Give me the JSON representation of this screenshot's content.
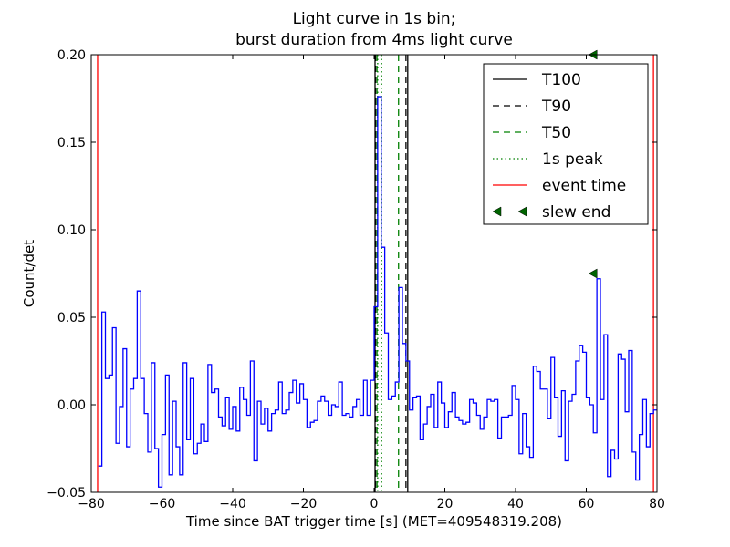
{
  "chart_data": {
    "type": "line",
    "style": "step",
    "title_lines": [
      "Light curve in 1s bin;",
      "burst duration from 4ms light curve"
    ],
    "xlabel": "Time since BAT trigger time [s] (MET=409548319.208)",
    "ylabel": "Count/det",
    "xlim": [
      -80,
      80
    ],
    "ylim": [
      -0.05,
      0.2
    ],
    "xticks": [
      -80,
      -60,
      -40,
      -20,
      0,
      20,
      40,
      60,
      80
    ],
    "xtick_labels": [
      "−80",
      "−60",
      "−40",
      "−20",
      "0",
      "20",
      "40",
      "60",
      "80"
    ],
    "yticks": [
      -0.05,
      0.0,
      0.05,
      0.1,
      0.15,
      0.2
    ],
    "ytick_labels": [
      "−0.05",
      "0.00",
      "0.05",
      "0.10",
      "0.15",
      "0.20"
    ],
    "grid": false,
    "legend_position": "top-right",
    "series": [
      {
        "name": "light curve",
        "color": "#0000ff",
        "bin_start": -78,
        "bin_width": 1,
        "values": [
          -0.035,
          0.053,
          0.015,
          0.017,
          0.044,
          -0.022,
          -0.001,
          0.032,
          -0.024,
          0.009,
          0.015,
          0.065,
          0.015,
          -0.005,
          -0.027,
          0.024,
          -0.025,
          -0.047,
          -0.017,
          0.017,
          -0.04,
          0.002,
          -0.024,
          -0.04,
          0.024,
          -0.02,
          0.015,
          -0.028,
          -0.022,
          -0.011,
          -0.021,
          0.023,
          0.007,
          0.009,
          -0.007,
          -0.012,
          0.004,
          -0.014,
          -0.001,
          -0.015,
          0.01,
          0.003,
          -0.006,
          0.025,
          -0.032,
          0.002,
          -0.011,
          -0.002,
          -0.015,
          -0.005,
          -0.003,
          0.013,
          -0.005,
          -0.003,
          0.007,
          0.014,
          0.001,
          0.012,
          0.003,
          -0.013,
          -0.01,
          -0.009,
          0.002,
          0.005,
          0.002,
          -0.006,
          0.0,
          -0.001,
          0.013,
          -0.006,
          -0.005,
          -0.007,
          -0.001,
          0.003,
          -0.006,
          0.014,
          -0.006,
          0.014,
          0.056,
          0.176,
          0.09,
          0.041,
          0.003,
          0.005,
          0.013,
          0.067,
          0.035,
          0.025,
          -0.003,
          0.004,
          0.005,
          -0.02,
          -0.011,
          -0.001,
          0.006,
          -0.013,
          0.013,
          0.001,
          -0.013,
          -0.004,
          0.007,
          -0.007,
          -0.009,
          -0.011,
          -0.01,
          0.003,
          0.001,
          -0.006,
          -0.014,
          -0.007,
          0.003,
          0.002,
          0.003,
          -0.019,
          -0.007,
          -0.007,
          -0.006,
          0.011,
          0.003,
          -0.028,
          -0.005,
          -0.024,
          -0.03,
          0.022,
          0.019,
          0.009,
          0.009,
          -0.008,
          0.027,
          0.004,
          -0.018,
          0.008,
          -0.032,
          0.002,
          0.006,
          0.025,
          0.034,
          0.03,
          0.004,
          0.0,
          -0.016,
          0.072,
          0.003,
          0.04,
          -0.041,
          -0.026,
          -0.031,
          0.029,
          0.026,
          -0.004,
          0.031,
          -0.027,
          -0.043,
          -0.017,
          0.003,
          -0.024,
          -0.005,
          -0.003
        ]
      }
    ],
    "vlines": [
      {
        "name": "T100",
        "color": "#000000",
        "style": "solid",
        "x": [
          0.26,
          9.5
        ]
      },
      {
        "name": "T90",
        "color": "#000000",
        "style": "dashed",
        "x": [
          0.4,
          9.0
        ]
      },
      {
        "name": "T50",
        "color": "#008000",
        "style": "dashed",
        "x": [
          0.8,
          6.9
        ]
      },
      {
        "name": "1s peak",
        "color": "#008000",
        "style": "dotted",
        "x": [
          1.0,
          2.1
        ]
      },
      {
        "name": "event time",
        "color": "#ff0000",
        "style": "solid",
        "x": [
          -78.2,
          79.0
        ]
      }
    ],
    "markers": [
      {
        "name": "slew end",
        "color": "#006400",
        "shape": "triangle-left",
        "points": [
          [
            62,
            0.075
          ],
          [
            62,
            0.2
          ]
        ]
      }
    ],
    "legend": [
      "T100",
      "T90",
      "T50",
      "1s peak",
      "event time",
      "slew end"
    ]
  }
}
